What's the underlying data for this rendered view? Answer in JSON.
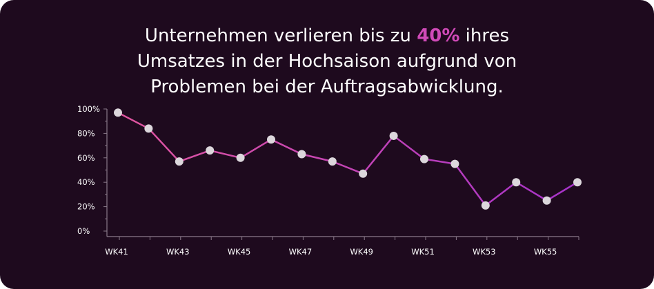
{
  "headline": {
    "line1_before": "Unternehmen verlieren bis zu ",
    "line1_highlight": "40%",
    "line1_after": " ihres",
    "line2": "Umsatzes in der Hochsaison aufgrund von",
    "line3": "Problemen bei der Auftragsabwicklung."
  },
  "colors": {
    "background": "#1e0a1e",
    "highlight": "#d04ab8",
    "line_start": "#e0559f",
    "line_end": "#a632c9",
    "marker": "#dcd7dc",
    "axis": "#8a7a8a"
  },
  "chart_data": {
    "type": "line",
    "title": "Unternehmen verlieren bis zu 40% ihres Umsatzes in der Hochsaison aufgrund von Problemen bei der Auftragsabwicklung.",
    "xlabel": "",
    "ylabel": "",
    "ylim": [
      0,
      100
    ],
    "y_ticks": [
      "0%",
      "20%",
      "40%",
      "60%",
      "80%",
      "100%"
    ],
    "x_tick_labels": [
      "WK41",
      "WK43",
      "WK45",
      "WK47",
      "WK49",
      "WK51",
      "WK53",
      "WK55"
    ],
    "categories": [
      "WK41",
      "WK42",
      "WK43",
      "WK44",
      "WK45",
      "WK46",
      "WK47",
      "WK48",
      "WK49",
      "WK50",
      "WK51",
      "WK52",
      "WK53",
      "WK54",
      "WK55",
      "WK56"
    ],
    "values": [
      97,
      84,
      57,
      66,
      60,
      75,
      63,
      57,
      47,
      78,
      59,
      55,
      21,
      40,
      25,
      40
    ],
    "grid": false,
    "legend": "none"
  }
}
